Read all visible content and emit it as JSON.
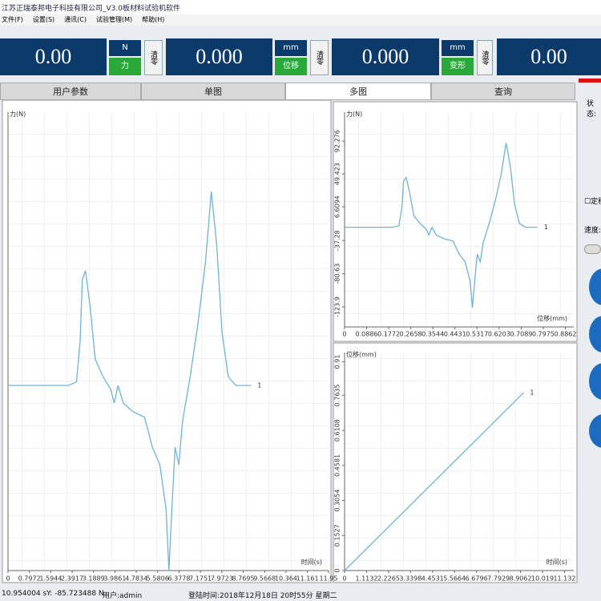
{
  "window": {
    "title": "江苏正瑞泰邦电子科技有限公司_V3.0板材料试验机软件",
    "menu": [
      "文件(F)",
      "设置(S)",
      "通讯(C)",
      "试验管理(M)",
      "帮助(H)"
    ]
  },
  "readouts": [
    {
      "value": "0.00",
      "unit": "N",
      "name": "力",
      "button": "清零"
    },
    {
      "value": "0.000",
      "unit": "mm",
      "name": "位移",
      "button": "清零"
    },
    {
      "value": "0.000",
      "unit": "mm",
      "name": "变形",
      "button": "清零"
    },
    {
      "value": "0.00"
    }
  ],
  "tabs": [
    "用户参数",
    "单图",
    "多图",
    "查询"
  ],
  "side_panel": {
    "status": "状态:",
    "checkbox": "定移",
    "speed": "速度:"
  },
  "status_bar": [
    "10.954004 s",
    "Y: -85.723488 N",
    "用户:admin",
    "登陆时间:2018年12月18日 20时55分 星期二"
  ],
  "chart_data": [
    {
      "type": "line",
      "ylabel": "力(N)",
      "xlabel": "时间(s)",
      "x": [
        0,
        2.26,
        2.55,
        2.69,
        2.77,
        2.89,
        3.06,
        3.25,
        3.54,
        3.82,
        3.96,
        4.1,
        4.3,
        4.67,
        5.09,
        5.38,
        5.66,
        5.89,
        6.0,
        6.11,
        6.23,
        6.37,
        6.51,
        6.79,
        7.08,
        7.36,
        7.58,
        7.78,
        7.98,
        8.21,
        8.49,
        9.06
      ],
      "series": [
        {
          "name": "1",
          "color": "#6fb3d9",
          "values": [
            -20,
            -20,
            -18,
            5,
            40,
            45,
            25,
            -5,
            -15,
            -22,
            -30,
            -20,
            -30,
            -35,
            -38,
            -55,
            -65,
            -90,
            -125,
            -90,
            -55,
            -65,
            -40,
            -15,
            15,
            50,
            90,
            60,
            10,
            -15,
            -20,
            -20
          ]
        }
      ],
      "xlim": [
        0,
        11.95
      ],
      "xticks": [
        0,
        0.7972,
        1.5944,
        2.3917,
        3.1889,
        3.9861,
        4.7834,
        5.5806,
        6.3778,
        7.1751,
        7.9723,
        8.7695,
        9.5668,
        10.364,
        11.161,
        11.95
      ],
      "ylim": [
        -125,
        135
      ]
    },
    {
      "type": "line",
      "ylabel": "力(N)",
      "xlabel": "位移(mm)",
      "x": [
        0,
        0.1932,
        0.218,
        0.23,
        0.2368,
        0.2471,
        0.2616,
        0.2779,
        0.3027,
        0.3266,
        0.3386,
        0.3506,
        0.3677,
        0.3993,
        0.4352,
        0.46,
        0.4839,
        0.5036,
        0.513,
        0.5224,
        0.5327,
        0.5446,
        0.5566,
        0.5805,
        0.6053,
        0.6293,
        0.6481,
        0.6652,
        0.6823,
        0.702,
        0.7259,
        0.7746
      ],
      "series": [
        {
          "name": "1",
          "color": "#6fb3d9",
          "values": [
            -20,
            -20,
            -18,
            5,
            40,
            45,
            25,
            -5,
            -15,
            -22,
            -30,
            -20,
            -30,
            -35,
            -38,
            -55,
            -65,
            -90,
            -125,
            -90,
            -55,
            -65,
            -40,
            -15,
            15,
            50,
            90,
            60,
            10,
            -15,
            -20,
            -20
          ]
        }
      ],
      "xlim": [
        0,
        0.92
      ],
      "xticks": [
        0,
        0.0886,
        0.1772,
        0.2658,
        0.3544,
        0.4431,
        0.5317,
        0.6203,
        0.7089,
        0.7975,
        0.8862
      ],
      "ylim": [
        -150,
        130
      ],
      "yticks": [
        92.276,
        49.423,
        6.6094,
        -37.28,
        -80.63,
        -123.9
      ]
    },
    {
      "type": "line",
      "ylabel": "位移(mm)",
      "xlabel": "时间(s)",
      "x": [
        0,
        9.06
      ],
      "series": [
        {
          "name": "1",
          "color": "#6fb3d9",
          "values": [
            0,
            0.775
          ]
        }
      ],
      "xlim": [
        0,
        11.6
      ],
      "xticks": [
        0,
        1.1132,
        2.2265,
        3.3398,
        4.4531,
        5.5664,
        6.6796,
        7.7929,
        8.9062,
        10.019,
        11.132
      ],
      "ylim": [
        0,
        0.95
      ],
      "yticks": [
        0,
        0.1527,
        0.3054,
        0.4581,
        0.6108,
        0.7635,
        0.91
      ]
    }
  ]
}
